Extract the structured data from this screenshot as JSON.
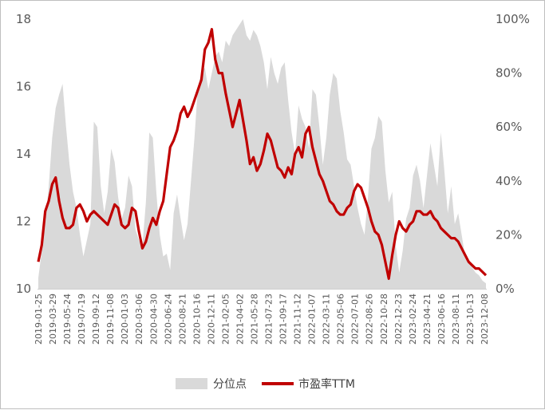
{
  "chart_data": {
    "type": "line",
    "title": "",
    "xlabel": "",
    "ylabel_left": "",
    "ylabel_right": "",
    "left_axis": {
      "min": 10,
      "max": 18,
      "ticks": [
        "10",
        "12",
        "14",
        "16",
        "18"
      ]
    },
    "right_axis": {
      "min": 0,
      "max": 100,
      "ticks": [
        "0%",
        "20%",
        "40%",
        "60%",
        "80%",
        "100%"
      ]
    },
    "x_tick_labels": [
      "2019-01-25",
      "2019-03-29",
      "2019-05-24",
      "2019-07-19",
      "2019-09-12",
      "2019-11-08",
      "2020-01-03",
      "2020-03-06",
      "2020-04-30",
      "2020-06-24",
      "2020-08-21",
      "2020-10-16",
      "2020-12-11",
      "2021-02-05",
      "2021-04-02",
      "2021-05-28",
      "2021-07-23",
      "2021-09-17",
      "2021-11-12",
      "2022-01-07",
      "2022-03-11",
      "2022-05-06",
      "2022-07-01",
      "2022-08-26",
      "2022-10-28",
      "2022-12-23",
      "2023-02-24",
      "2023-04-21",
      "2023-06-16",
      "2023-08-11",
      "2023-10-13",
      "2023-12-08"
    ],
    "series": [
      {
        "name": "分位点",
        "type": "area",
        "axis": "right",
        "color": "#d9d9d9",
        "values": [
          4,
          14,
          24,
          38,
          56,
          67,
          72,
          76,
          60,
          46,
          36,
          30,
          20,
          12,
          18,
          24,
          62,
          60,
          38,
          28,
          36,
          52,
          47,
          34,
          26,
          30,
          42,
          38,
          22,
          18,
          16,
          32,
          58,
          56,
          36,
          20,
          12,
          13,
          7,
          28,
          35,
          26,
          18,
          24,
          40,
          56,
          75,
          80,
          82,
          74,
          80,
          86,
          88,
          84,
          92,
          90,
          94,
          96,
          98,
          100,
          94,
          92,
          96,
          94,
          90,
          84,
          74,
          86,
          80,
          76,
          82,
          84,
          70,
          58,
          50,
          68,
          63,
          60,
          52,
          74,
          72,
          60,
          46,
          56,
          72,
          80,
          78,
          66,
          58,
          48,
          46,
          38,
          30,
          24,
          20,
          34,
          52,
          56,
          64,
          62,
          44,
          32,
          36,
          16,
          6,
          14,
          26,
          30,
          42,
          46,
          40,
          30,
          42,
          54,
          46,
          38,
          58,
          44,
          28,
          38,
          24,
          28,
          20,
          12,
          10,
          8,
          6,
          5,
          3,
          2
        ]
      },
      {
        "name": "市盈率TTM",
        "type": "line",
        "axis": "left",
        "color": "#c00000",
        "values": [
          10.8,
          11.3,
          12.3,
          12.6,
          13.1,
          13.3,
          12.6,
          12.1,
          11.8,
          11.8,
          11.9,
          12.4,
          12.5,
          12.3,
          12.0,
          12.2,
          12.3,
          12.2,
          12.1,
          12.0,
          11.9,
          12.2,
          12.5,
          12.4,
          11.9,
          11.8,
          11.9,
          12.4,
          12.3,
          11.7,
          11.2,
          11.4,
          11.8,
          12.1,
          11.9,
          12.3,
          12.6,
          13.4,
          14.2,
          14.4,
          14.7,
          15.2,
          15.4,
          15.1,
          15.3,
          15.6,
          15.9,
          16.2,
          17.1,
          17.3,
          17.7,
          16.8,
          16.4,
          16.4,
          15.8,
          15.3,
          14.8,
          15.2,
          15.6,
          15.0,
          14.4,
          13.7,
          13.9,
          13.5,
          13.7,
          14.1,
          14.6,
          14.4,
          14.0,
          13.6,
          13.5,
          13.3,
          13.6,
          13.4,
          14.0,
          14.2,
          13.9,
          14.6,
          14.8,
          14.2,
          13.8,
          13.4,
          13.2,
          12.9,
          12.6,
          12.5,
          12.3,
          12.2,
          12.2,
          12.4,
          12.5,
          12.9,
          13.1,
          13.0,
          12.7,
          12.4,
          12.0,
          11.7,
          11.6,
          11.3,
          10.8,
          10.3,
          11.0,
          11.6,
          12.0,
          11.8,
          11.7,
          11.9,
          12.0,
          12.3,
          12.3,
          12.2,
          12.2,
          12.3,
          12.1,
          12.0,
          11.8,
          11.7,
          11.6,
          11.5,
          11.5,
          11.4,
          11.2,
          11.0,
          10.8,
          10.7,
          10.6,
          10.6,
          10.5,
          10.4
        ]
      }
    ],
    "legend": {
      "position": "bottom"
    },
    "grid": false
  }
}
